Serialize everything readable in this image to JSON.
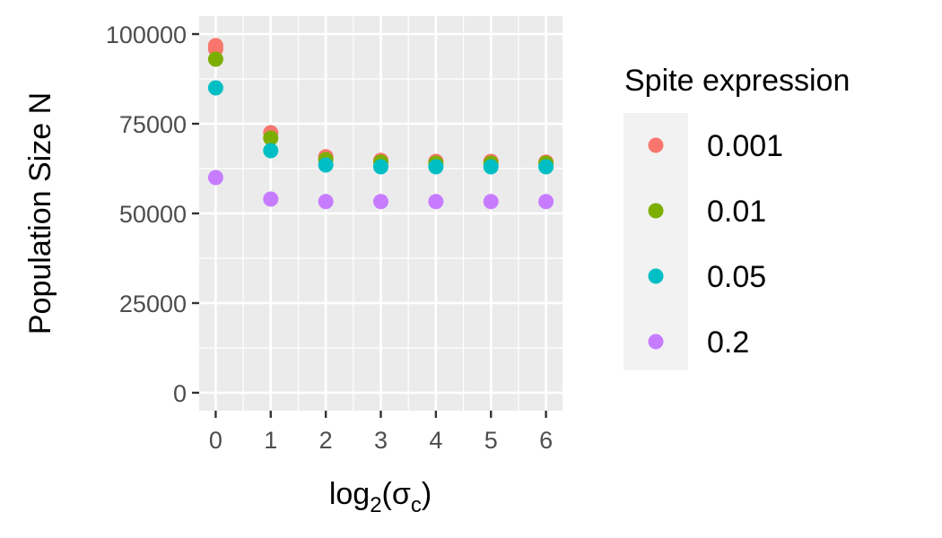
{
  "chart_data": {
    "type": "scatter",
    "xlabel_main": "log",
    "xlabel_sub": "2",
    "xlabel_open": "(",
    "xlabel_sigma": "σ",
    "xlabel_sigma_sub": "c",
    "xlabel_close": ")",
    "ylabel": "Population Size N",
    "xlim": [
      -0.3,
      6.3
    ],
    "ylim": [
      -5000,
      105000
    ],
    "x_ticks": [
      0,
      1,
      2,
      3,
      4,
      5,
      6
    ],
    "y_ticks": [
      0,
      25000,
      50000,
      75000,
      100000
    ],
    "y_tick_labels": [
      "0",
      "25000",
      "50000",
      "75000",
      "100000"
    ],
    "x_tick_labels": [
      "0",
      "1",
      "2",
      "3",
      "4",
      "5",
      "6"
    ],
    "grid": true,
    "background": "#ebebeb",
    "legend": {
      "title": "Spite expression",
      "position": "right"
    },
    "series": [
      {
        "name": "0.001",
        "color": "#f8766d",
        "points": [
          [
            0,
            96800
          ],
          [
            0,
            95800
          ],
          [
            1,
            72500
          ],
          [
            2,
            65800
          ],
          [
            3,
            64800
          ],
          [
            4,
            64500
          ],
          [
            5,
            64500
          ],
          [
            6,
            64300
          ]
        ]
      },
      {
        "name": "0.01",
        "color": "#7cae00",
        "points": [
          [
            0,
            93000
          ],
          [
            1,
            71000
          ],
          [
            2,
            65000
          ],
          [
            3,
            64300
          ],
          [
            4,
            64000
          ],
          [
            5,
            64000
          ],
          [
            6,
            64000
          ]
        ]
      },
      {
        "name": "0.05",
        "color": "#00bfc4",
        "points": [
          [
            0,
            85000
          ],
          [
            1,
            67500
          ],
          [
            2,
            63500
          ],
          [
            3,
            63000
          ],
          [
            4,
            63000
          ],
          [
            5,
            63000
          ],
          [
            6,
            63000
          ]
        ]
      },
      {
        "name": "0.2",
        "color": "#c77cff",
        "points": [
          [
            0,
            60000
          ],
          [
            1,
            54000
          ],
          [
            2,
            53300
          ],
          [
            3,
            53300
          ],
          [
            4,
            53300
          ],
          [
            5,
            53300
          ],
          [
            6,
            53300
          ]
        ]
      }
    ]
  }
}
